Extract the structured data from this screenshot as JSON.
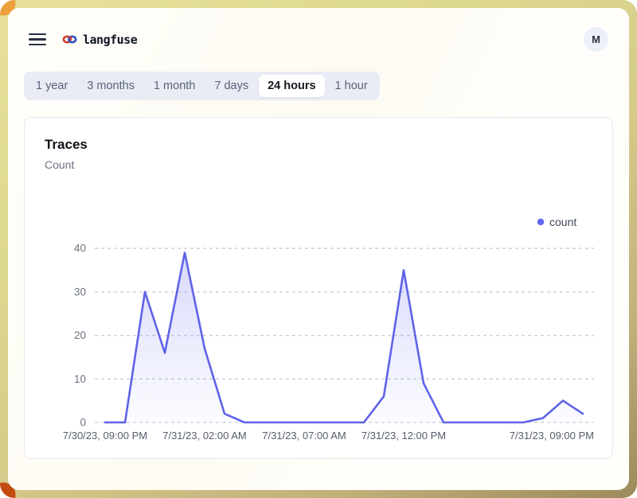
{
  "header": {
    "app_name": "langfuse",
    "avatar_initial": "M"
  },
  "time_tabs": {
    "items": [
      {
        "label": "1 year",
        "active": false
      },
      {
        "label": "3 months",
        "active": false
      },
      {
        "label": "1 month",
        "active": false
      },
      {
        "label": "7 days",
        "active": false
      },
      {
        "label": "24 hours",
        "active": true
      },
      {
        "label": "1 hour",
        "active": false
      }
    ]
  },
  "card": {
    "title": "Traces",
    "subtitle": "Count"
  },
  "chart_data": {
    "type": "area",
    "title": "Traces",
    "ylabel": "Count",
    "n_points": 25,
    "series": [
      {
        "name": "count",
        "values": [
          0,
          0,
          30,
          16,
          39,
          17,
          2,
          0,
          0,
          0,
          0,
          0,
          0,
          0,
          6,
          35,
          9,
          0,
          0,
          0,
          0,
          0,
          1,
          5,
          2
        ]
      }
    ],
    "x_ticks": [
      {
        "index": 0,
        "label": "7/30/23, 09:00 PM"
      },
      {
        "index": 5,
        "label": "7/31/23, 02:00 AM"
      },
      {
        "index": 10,
        "label": "7/31/23, 07:00 AM"
      },
      {
        "index": 15,
        "label": "7/31/23, 12:00 PM"
      },
      {
        "index": 24,
        "label": "7/31/23, 09:00 PM"
      }
    ],
    "y_ticks": [
      0,
      10,
      20,
      30,
      40
    ],
    "ylim": [
      0,
      40
    ],
    "grid": "dashed-horizontal",
    "legend": {
      "label": "count",
      "position": "top-right"
    },
    "colors": {
      "line": "#5f63e8",
      "fill_top": "rgba(99,102,241,0.25)",
      "fill_bottom": "rgba(99,102,241,0.02)",
      "grid": "#c9ced8",
      "axis_text": "#6b7280",
      "tick_text": "#565d6b",
      "legend_dot": "#6366f1",
      "legend_text": "#404757"
    }
  }
}
